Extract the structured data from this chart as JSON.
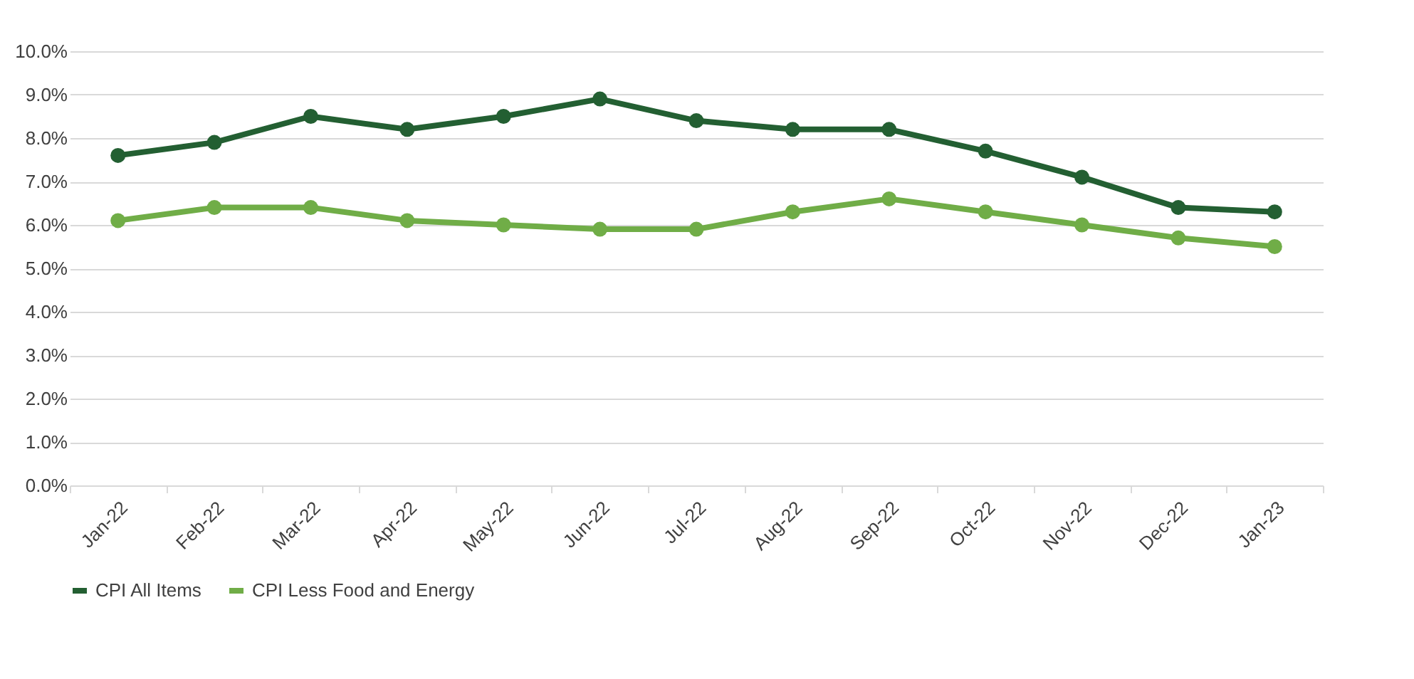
{
  "chart_data": {
    "type": "line",
    "categories": [
      "Jan-22",
      "Feb-22",
      "Mar-22",
      "Apr-22",
      "May-22",
      "Jun-22",
      "Jul-22",
      "Aug-22",
      "Sep-22",
      "Oct-22",
      "Nov-22",
      "Dec-22",
      "Jan-23"
    ],
    "series": [
      {
        "name": "CPI All Items",
        "color": "#235f32",
        "values": [
          7.6,
          7.9,
          8.5,
          8.2,
          8.5,
          8.9,
          8.4,
          8.2,
          8.2,
          7.7,
          7.1,
          6.4,
          6.3
        ]
      },
      {
        "name": "CPI Less Food and Energy",
        "color": "#70ad47",
        "values": [
          6.1,
          6.4,
          6.4,
          6.1,
          6.0,
          5.9,
          5.9,
          6.3,
          6.6,
          6.3,
          6.0,
          5.7,
          5.5
        ]
      }
    ],
    "ylim": [
      0,
      10
    ],
    "yticks": [
      {
        "value": 0,
        "label": "0.0%"
      },
      {
        "value": 1,
        "label": "1.0%"
      },
      {
        "value": 2,
        "label": "2.0%"
      },
      {
        "value": 3,
        "label": "3.0%"
      },
      {
        "value": 4,
        "label": "4.0%"
      },
      {
        "value": 5,
        "label": "5.0%"
      },
      {
        "value": 6,
        "label": "6.0%"
      },
      {
        "value": 7,
        "label": "7.0%"
      },
      {
        "value": 8,
        "label": "8.0%"
      },
      {
        "value": 9,
        "label": "9.0%"
      },
      {
        "value": 10,
        "label": "10.0%"
      }
    ],
    "grid": "y",
    "legend": "bottom",
    "marker": "circle",
    "line_style": "solid"
  }
}
